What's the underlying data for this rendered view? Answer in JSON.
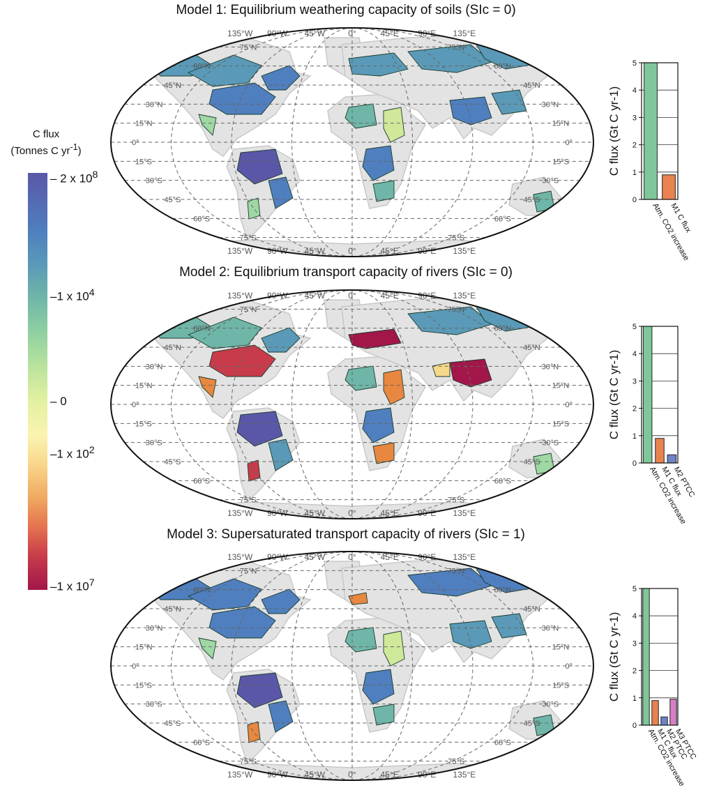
{
  "legend": {
    "title_line1": "C flux",
    "title_line2": "(Tonnes C yr-1)",
    "labels": [
      "2 x 10^8",
      "1 x 10^4",
      "0",
      "-1 x 10^2",
      "-1 x 10^7"
    ]
  },
  "maps": [
    {
      "title": "Model 1: Equilibrium weathering capacity of soils (SIc = 0)",
      "lat_labels": [
        "75°N",
        "60°N",
        "45°N",
        "30°N",
        "15°N",
        "0°",
        "15°S",
        "30°S",
        "45°S",
        "60°S",
        "75°S"
      ],
      "lon_labels": [
        "135°W",
        "90°W",
        "45°W",
        "0°",
        "45°E",
        "90°E",
        "135°E"
      ]
    },
    {
      "title": "Model 2: Equilibrium transport capacity of rivers (SIc = 0)",
      "lat_labels": [
        "75°N",
        "60°N",
        "45°N",
        "30°N",
        "15°N",
        "0°",
        "15°S",
        "30°S",
        "45°S",
        "60°S",
        "75°S"
      ],
      "lon_labels": [
        "135°W",
        "90°W",
        "45°W",
        "0°",
        "45°E",
        "90°E",
        "135°E"
      ]
    },
    {
      "title": "Model 3: Supersaturated transport capacity of rivers (SIc = 1)",
      "lat_labels": [
        "75°N",
        "60°N",
        "45°N",
        "30°N",
        "15°N",
        "0°",
        "15°S",
        "30°S",
        "45°S",
        "60°S",
        "75°S"
      ],
      "lon_labels": [
        "135°W",
        "90°W",
        "45°W",
        "0°",
        "45°E",
        "90°E",
        "135°E"
      ]
    }
  ],
  "chart_data": [
    {
      "type": "bar",
      "ylabel": "C flux (Gt C yr-1)",
      "ylim": [
        0,
        5
      ],
      "yticks": [
        "0",
        "1",
        "2",
        "3",
        "4",
        "5"
      ],
      "categories": [
        "Atm. CO2 increase",
        "M1 C flux"
      ],
      "values": [
        5.0,
        0.9
      ],
      "colors": [
        "#7fc79a",
        "#e8834f"
      ],
      "grid": true
    },
    {
      "type": "bar",
      "ylabel": "C flux (Gt C yr-1)",
      "ylim": [
        0,
        5
      ],
      "yticks": [
        "0",
        "1",
        "2",
        "3",
        "4",
        "5"
      ],
      "categories": [
        "Atm. CO2 increase",
        "M1 C flux",
        "M2 PTCC"
      ],
      "values": [
        5.0,
        0.9,
        0.3
      ],
      "colors": [
        "#7fc79a",
        "#e8834f",
        "#6f84c6"
      ],
      "grid": true
    },
    {
      "type": "bar",
      "ylabel": "C flux (Gt C yr-1)",
      "ylim": [
        0,
        5
      ],
      "yticks": [
        "0",
        "1",
        "2",
        "3",
        "4",
        "5"
      ],
      "categories": [
        "Atm. CO2 increase",
        "M1 C flux",
        "M2 PTCC",
        "M3 PTCC"
      ],
      "values": [
        5.0,
        0.9,
        0.3,
        0.95
      ],
      "colors": [
        "#7fc79a",
        "#e8834f",
        "#6f84c6",
        "#d77fc4"
      ],
      "grid": true
    }
  ],
  "colors": {
    "land": "#e3e3e3",
    "deep_blue": "#5a57a8",
    "blue": "#4f7fbf",
    "teal_blue": "#5a9ab8",
    "teal": "#6fb6a8",
    "green": "#9fd8a4",
    "yellow_green": "#cfe89a",
    "orange": "#e8873f",
    "red": "#c73b4a",
    "crimson": "#a2164a"
  }
}
